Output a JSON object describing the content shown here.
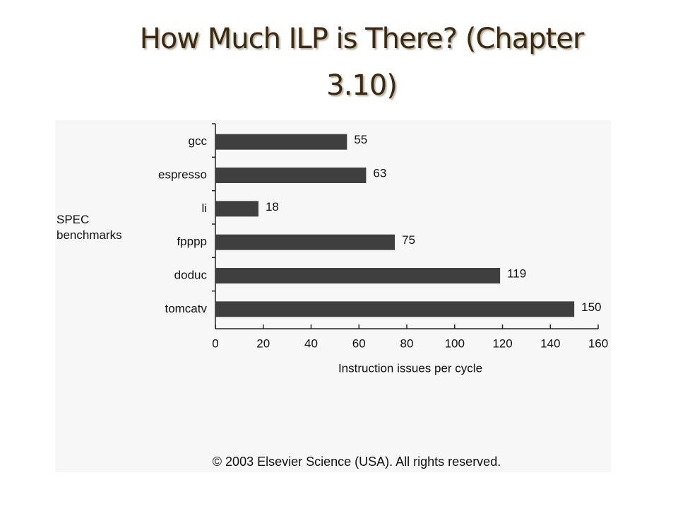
{
  "chart_data": {
    "type": "bar",
    "orientation": "horizontal",
    "title": "How Much ILP is There? (Chapter 3.10)",
    "y_label": "SPEC benchmarks",
    "x_label": "Instruction issues per cycle",
    "categories": [
      "gcc",
      "espresso",
      "li",
      "fpppp",
      "doduc",
      "tomcatv"
    ],
    "values": [
      55,
      63,
      18,
      75,
      119,
      150
    ],
    "color": "#3f3f3f",
    "xlim": [
      0,
      160
    ],
    "xticks": [
      0,
      20,
      40,
      60,
      80,
      100,
      120,
      140,
      160
    ],
    "footnote": "© 2003 Elsevier Science (USA). All rights reserved."
  }
}
